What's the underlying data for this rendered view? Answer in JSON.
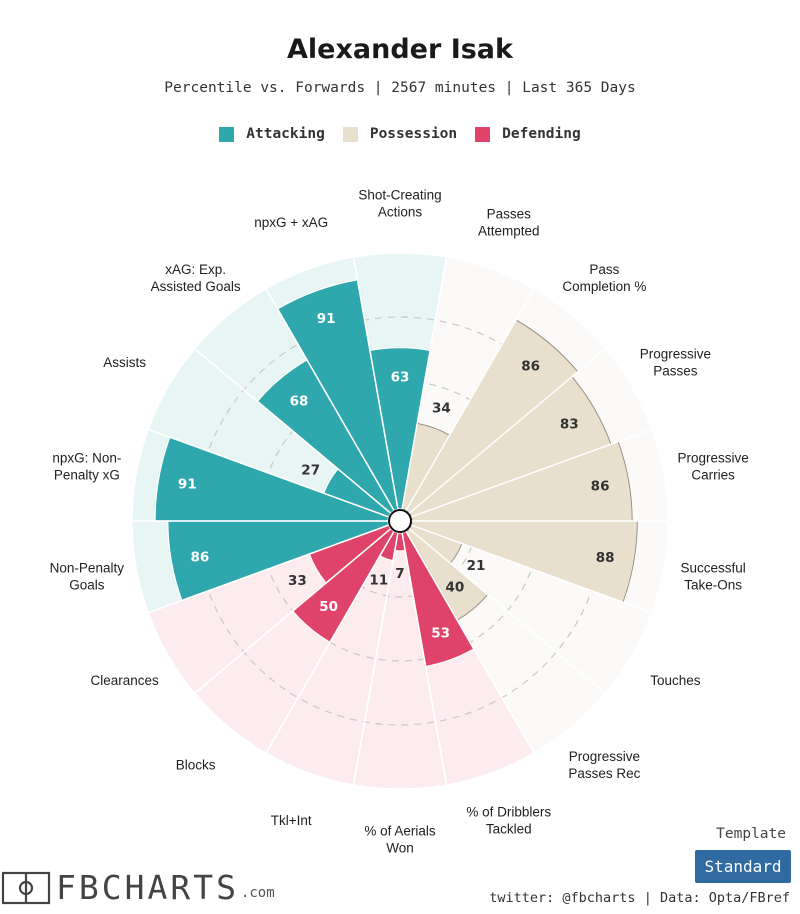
{
  "header": {
    "title": "Alexander Isak",
    "subtitle": "Percentile vs. Forwards | 2567 minutes | Last 365 Days"
  },
  "legend": [
    {
      "label": "Attacking",
      "color": "#2ea7ad"
    },
    {
      "label": "Possession",
      "color": "#e8e0cc"
    },
    {
      "label": "Defending",
      "color": "#e0436a"
    }
  ],
  "chart_data": {
    "type": "polar-bar",
    "range": [
      0,
      100
    ],
    "categories": [
      {
        "label": "Shot-Creating Actions",
        "value": 63,
        "group": "Attacking"
      },
      {
        "label": "Passes Attempted",
        "value": 34,
        "group": "Possession"
      },
      {
        "label": "Pass Completion %",
        "value": 86,
        "group": "Possession"
      },
      {
        "label": "Progressive Passes",
        "value": 83,
        "group": "Possession"
      },
      {
        "label": "Progressive Carries",
        "value": 86,
        "group": "Possession"
      },
      {
        "label": "Successful Take-Ons",
        "value": 88,
        "group": "Possession"
      },
      {
        "label": "Touches",
        "value": 21,
        "group": "Possession"
      },
      {
        "label": "Progressive Passes Rec",
        "value": 40,
        "group": "Possession"
      },
      {
        "label": "% of Dribblers Tackled",
        "value": 53,
        "group": "Defending"
      },
      {
        "label": "% of Aerials Won",
        "value": 7,
        "group": "Defending"
      },
      {
        "label": "Tkl+Int",
        "value": 11,
        "group": "Defending"
      },
      {
        "label": "Blocks",
        "value": 50,
        "group": "Defending"
      },
      {
        "label": "Clearances",
        "value": 33,
        "group": "Defending"
      },
      {
        "label": "Non-Penalty Goals",
        "value": 86,
        "group": "Attacking"
      },
      {
        "label": "npxG: Non-Penalty xG",
        "value": 91,
        "group": "Attacking"
      },
      {
        "label": "Assists",
        "value": 27,
        "group": "Attacking"
      },
      {
        "label": "xAG: Exp. Assisted Goals",
        "value": 68,
        "group": "Attacking"
      },
      {
        "label": "npxG + xAG",
        "value": 91,
        "group": "Attacking"
      }
    ],
    "category_lines": [
      [
        "Shot-Creating",
        "Actions"
      ],
      [
        "Passes",
        "Attempted"
      ],
      [
        "Pass",
        "Completion %"
      ],
      [
        "Progressive",
        "Passes"
      ],
      [
        "Progressive",
        "Carries"
      ],
      [
        "Successful",
        "Take-Ons"
      ],
      [
        "Touches"
      ],
      [
        "Progressive",
        "Passes Rec"
      ],
      [
        "% of Dribblers",
        "Tackled"
      ],
      [
        "% of Aerials",
        "Won"
      ],
      [
        "Tkl+Int"
      ],
      [
        "Blocks"
      ],
      [
        "Clearances"
      ],
      [
        "Non-Penalty",
        "Goals"
      ],
      [
        "npxG: Non-",
        "Penalty xG"
      ],
      [
        "Assists"
      ],
      [
        "xAG: Exp.",
        "Assisted Goals"
      ],
      [
        "npxG + xAG"
      ]
    ],
    "group_colors": {
      "Attacking": {
        "bar": "#2ea7ad",
        "bg": "#e7f5f5",
        "text": "#ffffff"
      },
      "Possession": {
        "bar": "#e8e0cc",
        "bg": "#fbfaf8",
        "text": "#333333"
      },
      "Defending": {
        "bar": "#e0436a",
        "bg": "#fcebef",
        "text": "#ffffff"
      }
    },
    "grid": true
  },
  "branding": {
    "logo_text": "FBCHARTS",
    "logo_suffix": ".com",
    "template_label": "Template",
    "template_value": "Standard",
    "credits": "twitter: @fbcharts | Data: Opta/FBref"
  }
}
